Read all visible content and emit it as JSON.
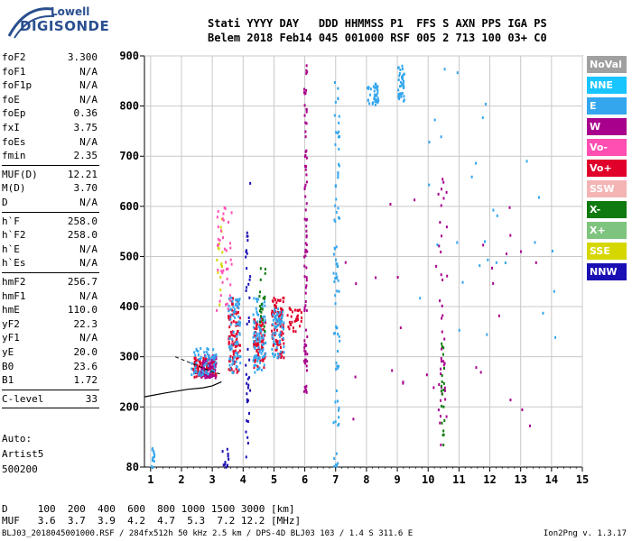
{
  "logo": {
    "brand_top": "Lowell",
    "brand_main": "DIGISONDE"
  },
  "header": {
    "line1": "Stati YYYY DAY   DDD HHMMSS P1  FFS S AXN PPS IGA PS",
    "line2": "Belem 2018 Feb14 045 001000 RSF 005 2 713 100 03+ C0"
  },
  "params_group1": [
    {
      "name": "foF2",
      "value": "3.300"
    },
    {
      "name": "foF1",
      "value": "N/A"
    },
    {
      "name": "foF1p",
      "value": "N/A"
    },
    {
      "name": "foE",
      "value": "N/A"
    },
    {
      "name": "foEp",
      "value": "0.36"
    },
    {
      "name": "fxI",
      "value": "3.75"
    },
    {
      "name": "foEs",
      "value": "N/A"
    },
    {
      "name": "fmin",
      "value": "2.35"
    }
  ],
  "params_group2": [
    {
      "name": "MUF(D)",
      "value": "12.21"
    },
    {
      "name": "M(D)",
      "value": "3.70"
    },
    {
      "name": "D",
      "value": "N/A"
    }
  ],
  "params_group3": [
    {
      "name": "h`F",
      "value": "258.0"
    },
    {
      "name": "h`F2",
      "value": "258.0"
    },
    {
      "name": "h`E",
      "value": "N/A"
    },
    {
      "name": "h`Es",
      "value": "N/A"
    }
  ],
  "params_group4": [
    {
      "name": "hmF2",
      "value": "256.7"
    },
    {
      "name": "hmF1",
      "value": "N/A"
    },
    {
      "name": "hmE",
      "value": "110.0"
    },
    {
      "name": "yF2",
      "value": "22.3"
    },
    {
      "name": "yF1",
      "value": "N/A"
    },
    {
      "name": "yE",
      "value": "20.0"
    },
    {
      "name": "B0",
      "value": "23.6"
    },
    {
      "name": "B1",
      "value": "1.72"
    }
  ],
  "params_group5": [
    {
      "name": "C-level",
      "value": "33"
    }
  ],
  "auto": {
    "line1": "Auto:",
    "line2": "Artist5",
    "line3": "500200"
  },
  "muf_table": {
    "line1": "D     100  200  400  600  800 1000 1500 3000 [km]",
    "line2": "MUF   3.6  3.7  3.9  4.2  4.7  5.3  7.2 12.2 [MHz]"
  },
  "footer": {
    "left": "BLJ03_2018045001000.RSF / 284fx512h 50 kHz 2.5 km / DPS-4D BLJ03 103 / 1.4 S 311.6 E",
    "right": "Ion2Png v. 1.3.17"
  },
  "legend": [
    {
      "label": "NoVal",
      "color": "#a0a0a0"
    },
    {
      "label": "NNE",
      "color": "#19c5ff"
    },
    {
      "label": "E",
      "color": "#33a6ee"
    },
    {
      "label": "W",
      "color": "#a8008c"
    },
    {
      "label": "Vo-",
      "color": "#ff4fb3"
    },
    {
      "label": "Vo+",
      "color": "#e0002a"
    },
    {
      "label": "SSW",
      "color": "#f4b4b4"
    },
    {
      "label": "X-",
      "color": "#0f7a0f"
    },
    {
      "label": "X+",
      "color": "#7ec47e"
    },
    {
      "label": "SSE",
      "color": "#d6d600"
    },
    {
      "label": "NNW",
      "color": "#1a0fb4"
    }
  ],
  "chart_data": {
    "type": "scatter",
    "title": "",
    "xlabel": "",
    "ylabel": "",
    "xlim": [
      0.8,
      15
    ],
    "ylim": [
      80,
      900
    ],
    "x_ticks": [
      1,
      2,
      3,
      4,
      5,
      6,
      7,
      8,
      9,
      10,
      11,
      12,
      13,
      14,
      15
    ],
    "y_ticks": [
      80,
      200,
      300,
      400,
      500,
      600,
      700,
      800,
      900
    ],
    "grid": true,
    "legend_position": "right",
    "trace_groups": [
      {
        "color": "#e0002a",
        "fmin": 2.35,
        "fmax": 3.1,
        "hmin": 262,
        "hmax": 300,
        "count": 120
      },
      {
        "color": "#a8008c",
        "fmin": 2.6,
        "fmax": 3.1,
        "hmin": 260,
        "hmax": 305,
        "count": 70
      },
      {
        "color": "#33a6ee",
        "fmin": 2.3,
        "fmax": 3.1,
        "hmin": 265,
        "hmax": 320,
        "count": 60
      },
      {
        "color": "#e0002a",
        "fmin": 3.5,
        "fmax": 3.9,
        "hmin": 270,
        "hmax": 420,
        "count": 90
      },
      {
        "color": "#33a6ee",
        "fmin": 3.5,
        "fmax": 3.9,
        "hmin": 270,
        "hmax": 430,
        "count": 70
      },
      {
        "color": "#e0002a",
        "fmin": 4.3,
        "fmax": 4.7,
        "hmin": 280,
        "hmax": 380,
        "count": 80
      },
      {
        "color": "#33a6ee",
        "fmin": 4.3,
        "fmax": 4.7,
        "hmin": 270,
        "hmax": 420,
        "count": 80
      },
      {
        "color": "#e0002a",
        "fmin": 4.9,
        "fmax": 5.3,
        "hmin": 300,
        "hmax": 420,
        "count": 90
      },
      {
        "color": "#33a6ee",
        "fmin": 4.9,
        "fmax": 5.3,
        "hmin": 300,
        "hmax": 400,
        "count": 60
      },
      {
        "color": "#e0002a",
        "fmin": 5.4,
        "fmax": 5.9,
        "hmin": 350,
        "hmax": 400,
        "count": 30
      },
      {
        "color": "#a8008c",
        "fmin": 5.95,
        "fmax": 6.05,
        "hmin": 220,
        "hmax": 890,
        "count": 90
      },
      {
        "color": "#33a6ee",
        "fmin": 6.9,
        "fmax": 7.1,
        "hmin": 80,
        "hmax": 860,
        "count": 80
      },
      {
        "color": "#33a6ee",
        "fmin": 8.0,
        "fmax": 8.4,
        "hmin": 805,
        "hmax": 850,
        "count": 40
      },
      {
        "color": "#33a6ee",
        "fmin": 9.0,
        "fmax": 9.2,
        "hmin": 810,
        "hmax": 890,
        "count": 40
      },
      {
        "color": "#1a0fb4",
        "fmin": 4.05,
        "fmax": 4.2,
        "hmin": 80,
        "hmax": 700,
        "count": 40
      },
      {
        "color": "#1a0fb4",
        "fmin": 3.3,
        "fmax": 3.5,
        "hmin": 80,
        "hmax": 120,
        "count": 10
      },
      {
        "color": "#0f7a0f",
        "fmin": 4.5,
        "fmax": 4.7,
        "hmin": 350,
        "hmax": 480,
        "count": 20
      },
      {
        "color": "#d6d600",
        "fmin": 3.1,
        "fmax": 3.3,
        "hmin": 400,
        "hmax": 580,
        "count": 15
      },
      {
        "color": "#ff4fb3",
        "fmin": 3.1,
        "fmax": 3.6,
        "hmin": 380,
        "hmax": 600,
        "count": 40
      },
      {
        "color": "#a8008c",
        "fmin": 10.3,
        "fmax": 10.6,
        "hmin": 100,
        "hmax": 700,
        "count": 40
      },
      {
        "color": "#0f7a0f",
        "fmin": 10.4,
        "fmax": 10.5,
        "hmin": 120,
        "hmax": 330,
        "count": 20
      },
      {
        "color": "#33a6ee",
        "fmin": 1.0,
        "fmax": 1.1,
        "hmin": 80,
        "hmax": 120,
        "count": 12
      },
      {
        "color": "#33a6ee",
        "fmin": 9.5,
        "fmax": 14.5,
        "hmin": 300,
        "hmax": 880,
        "count": 30
      },
      {
        "color": "#a8008c",
        "fmin": 7.2,
        "fmax": 13.5,
        "hmin": 150,
        "hmax": 650,
        "count": 30
      }
    ],
    "profile_solid": [
      [
        0.8,
        220
      ],
      [
        1.5,
        228
      ],
      [
        2.2,
        235
      ],
      [
        2.7,
        238
      ],
      [
        3.0,
        242
      ],
      [
        3.3,
        250
      ]
    ],
    "profile_dashed": [
      [
        1.8,
        300
      ],
      [
        2.2,
        290
      ],
      [
        2.6,
        280
      ],
      [
        3.0,
        270
      ],
      [
        3.3,
        265
      ]
    ]
  }
}
